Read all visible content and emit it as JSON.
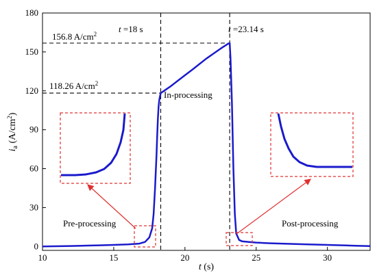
{
  "chart_data": {
    "type": "line",
    "xlabel_italic": "t",
    "xlabel_unit": " (s)",
    "ylabel_italic": "i",
    "ylabel_sub": "a",
    "ylabel_unit": " (A/cm",
    "ylabel_sup": "2",
    "ylabel_close": ")",
    "xlim": [
      10,
      33
    ],
    "ylim": [
      -3,
      180
    ],
    "xticks": [
      10,
      15,
      20,
      25,
      30
    ],
    "yticks": [
      0,
      30,
      60,
      90,
      120,
      150,
      180
    ],
    "grid": false,
    "series": [
      {
        "x": [
          10,
          12,
          14,
          15,
          16,
          16.8,
          17.2,
          17.5,
          17.7,
          17.8,
          17.9,
          18.0,
          18.05,
          18.1,
          18.15,
          18.2,
          18.25,
          18.3,
          18.6,
          19.0,
          19.5,
          20.0,
          20.5,
          21.0,
          21.5,
          22.0,
          22.5,
          23.0,
          23.14,
          23.2,
          23.3,
          23.4,
          23.5,
          23.6,
          23.8,
          24.0,
          24.5,
          25,
          26,
          28,
          30,
          32,
          33
        ],
        "y": [
          0,
          0.4,
          0.9,
          1.2,
          1.6,
          2.2,
          3.5,
          7,
          14,
          25,
          45,
          70,
          85,
          98,
          108,
          113,
          116,
          118.26,
          120.5,
          123.5,
          127.8,
          132,
          136.2,
          140.5,
          144.8,
          148.7,
          152.5,
          156.1,
          156.8,
          145,
          110,
          60,
          25,
          10,
          5,
          4,
          3.5,
          3,
          2.5,
          1.8,
          1.2,
          0.6,
          0.3
        ]
      }
    ],
    "vlines": [
      18.3,
      23.14
    ],
    "hlines": [
      {
        "y": 156.8,
        "x_end": 23.14
      },
      {
        "y": 118.26,
        "x_end": 18.3
      }
    ],
    "annotations": {
      "t1_italic": "t",
      "t1_value": " =18 s",
      "t2_italic": "t",
      "t2_value": " =23.14  s",
      "peak_value": "156.8 A/cm",
      "peak_sup": "2",
      "step_value": "118.26 A/cm",
      "step_sup": "2",
      "in_processing": "In-processing",
      "pre_processing": "Pre-processing",
      "post_processing": "Post-processing"
    },
    "colors": {
      "curve": "#1a1acc",
      "dashed_lines": "#000000",
      "inset_boxes": "#e03030",
      "arrows": "#e03030"
    }
  }
}
